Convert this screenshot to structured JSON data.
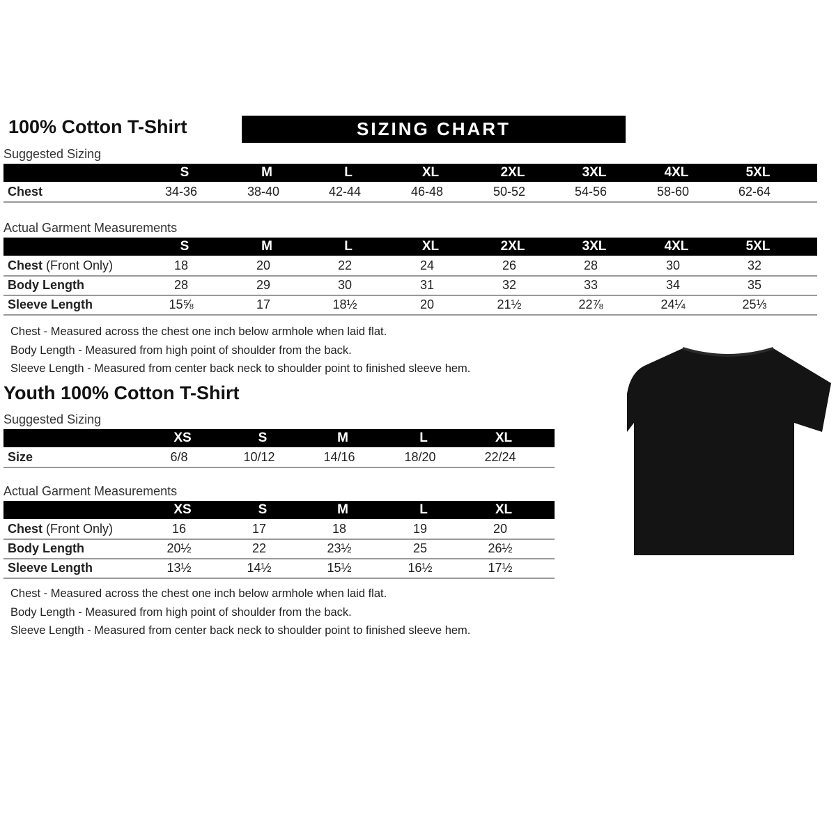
{
  "adult": {
    "title": "100% Cotton T-Shirt",
    "banner": "SIZING CHART",
    "suggested_label": "Suggested Sizing",
    "sizes": [
      "S",
      "M",
      "L",
      "XL",
      "2XL",
      "3XL",
      "4XL",
      "5XL"
    ],
    "suggested_rows": [
      {
        "label": "Chest",
        "label_extra": "",
        "values": [
          "34-36",
          "38-40",
          "42-44",
          "46-48",
          "50-52",
          "54-56",
          "58-60",
          "62-64"
        ]
      }
    ],
    "actual_label": "Actual Garment Measurements",
    "actual_rows": [
      {
        "label": "Chest",
        "label_extra": " (Front Only)",
        "values": [
          "18",
          "20",
          "22",
          "24",
          "26",
          "28",
          "30",
          "32"
        ]
      },
      {
        "label": "Body Length",
        "label_extra": "",
        "values": [
          "28",
          "29",
          "30",
          "31",
          "32",
          "33",
          "34",
          "35"
        ]
      },
      {
        "label": "Sleeve Length",
        "label_extra": "",
        "values": [
          "15⅝",
          "17",
          "18½",
          "20",
          "21½",
          "22⅞",
          "24¼",
          "25⅓"
        ]
      }
    ],
    "notes": [
      "Chest - Measured across the chest one inch below armhole when laid flat.",
      "Body Length - Measured from high point of shoulder from the back.",
      "Sleeve Length - Measured from center back neck to shoulder point to finished sleeve hem."
    ]
  },
  "youth": {
    "title": "Youth 100% Cotton T-Shirt",
    "suggested_label": "Suggested Sizing",
    "sizes": [
      "XS",
      "S",
      "M",
      "L",
      "XL"
    ],
    "suggested_rows": [
      {
        "label": "Size",
        "label_extra": "",
        "values": [
          "6/8",
          "10/12",
          "14/16",
          "18/20",
          "22/24"
        ]
      }
    ],
    "actual_label": "Actual Garment Measurements",
    "actual_rows": [
      {
        "label": "Chest",
        "label_extra": " (Front Only)",
        "values": [
          "16",
          "17",
          "18",
          "19",
          "20"
        ]
      },
      {
        "label": "Body Length",
        "label_extra": "",
        "values": [
          "20½",
          "22",
          "23½",
          "25",
          "26½"
        ]
      },
      {
        "label": "Sleeve Length",
        "label_extra": "",
        "values": [
          "13½",
          "14½",
          "15½",
          "16½",
          "17½"
        ]
      }
    ],
    "notes": [
      "Chest - Measured across the chest one inch below armhole when laid flat.",
      "Body Length - Measured from high point of shoulder from the back.",
      "Sleeve Length - Measured from center back neck to shoulder point to finished sleeve hem."
    ]
  },
  "image": {
    "icon": "black-t-shirt-icon",
    "color": "#141414"
  }
}
